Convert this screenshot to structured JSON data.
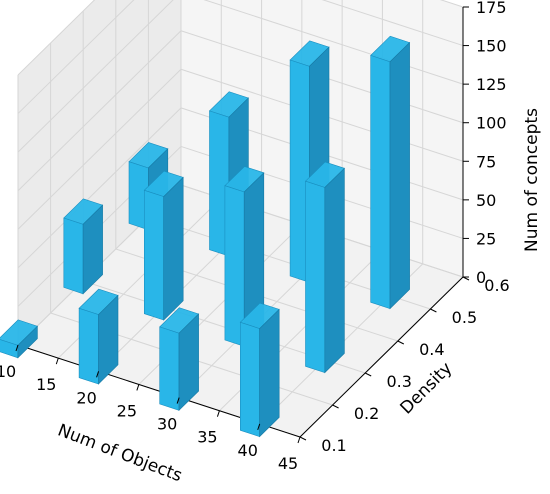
{
  "chart_data": {
    "type": "bar3d",
    "title": "",
    "xlabel": "Num of Objects",
    "ylabel": "Density",
    "zlabel": "Num of concepts",
    "x_ticks": [
      "10",
      "15",
      "20",
      "25",
      "30",
      "35",
      "40",
      "45"
    ],
    "y_ticks": [
      "0.1",
      "0.2",
      "0.3",
      "0.4",
      "0.5",
      "0.6"
    ],
    "z_ticks": [
      "0",
      "25",
      "50",
      "75",
      "100",
      "125",
      "150",
      "175"
    ],
    "xlim": [
      10,
      45
    ],
    "ylim": [
      0.1,
      0.6
    ],
    "zlim": [
      0,
      175
    ],
    "x_values": [
      10,
      20,
      30,
      40
    ],
    "y_values": [
      0.1,
      0.3,
      0.5
    ],
    "values": [
      [
        8,
        45,
        40
      ],
      [
        45,
        80,
        90
      ],
      [
        50,
        100,
        140
      ],
      [
        70,
        120,
        160
      ]
    ],
    "grid": true,
    "bar_color": "#29b6e8"
  }
}
